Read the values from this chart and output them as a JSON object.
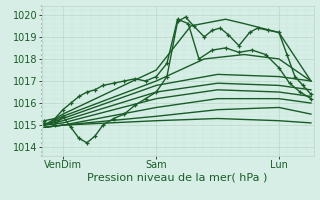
{
  "bg_color": "#d6eee6",
  "grid_major_color": "#b8d8c8",
  "grid_minor_color": "#c8e8d8",
  "line_color": "#1a5c28",
  "xlabel": "Pression niveau de la mer( hPa )",
  "xlabel_fontsize": 8,
  "tick_label_color": "#1a5c28",
  "tick_fontsize": 7,
  "ylim": [
    1013.6,
    1020.4
  ],
  "yticks": [
    1014,
    1015,
    1016,
    1017,
    1018,
    1019,
    1020
  ],
  "xtick_labels": [
    "VenDim",
    "Sam",
    "Lun"
  ],
  "xtick_positions": [
    0.07,
    0.42,
    0.88
  ],
  "series": [
    {
      "x": [
        0.0,
        0.04,
        0.07,
        0.1,
        0.13,
        0.16,
        0.19,
        0.22,
        0.26,
        0.3,
        0.34,
        0.38,
        0.42,
        0.46,
        0.5,
        0.53,
        0.56,
        0.6,
        0.63,
        0.66,
        0.69,
        0.73,
        0.77,
        0.8,
        0.84,
        0.88,
        0.91,
        0.94,
        0.97,
        1.0
      ],
      "y": [
        1015.1,
        1015.0,
        1015.4,
        1014.9,
        1014.4,
        1014.2,
        1014.5,
        1015.0,
        1015.3,
        1015.5,
        1015.9,
        1016.2,
        1016.5,
        1017.2,
        1019.7,
        1019.9,
        1019.5,
        1019.0,
        1019.3,
        1019.4,
        1019.1,
        1018.6,
        1019.2,
        1019.4,
        1019.3,
        1019.2,
        1018.2,
        1017.2,
        1016.8,
        1016.4
      ],
      "marker": true,
      "lw": 1.0
    },
    {
      "x": [
        0.0,
        0.04,
        0.07,
        0.1,
        0.13,
        0.16,
        0.19,
        0.22,
        0.26,
        0.3,
        0.34,
        0.38,
        0.42,
        0.46,
        0.5,
        0.54,
        0.58,
        0.63,
        0.68,
        0.73,
        0.78,
        0.83,
        0.88,
        0.92,
        0.96,
        1.0
      ],
      "y": [
        1015.2,
        1015.3,
        1015.7,
        1016.0,
        1016.3,
        1016.5,
        1016.6,
        1016.8,
        1016.9,
        1017.0,
        1017.1,
        1017.0,
        1017.2,
        1017.8,
        1019.8,
        1019.6,
        1018.0,
        1018.4,
        1018.5,
        1018.3,
        1018.4,
        1018.2,
        1017.6,
        1016.9,
        1016.5,
        1016.2
      ],
      "marker": true,
      "lw": 1.0
    },
    {
      "x": [
        0.0,
        0.07,
        0.42,
        0.55,
        0.68,
        0.75,
        0.88,
        1.0
      ],
      "y": [
        1015.0,
        1015.5,
        1017.5,
        1019.5,
        1019.8,
        1019.6,
        1019.2,
        1017.0
      ],
      "marker": false,
      "lw": 1.0
    },
    {
      "x": [
        0.0,
        0.07,
        0.42,
        0.6,
        0.75,
        0.88,
        1.0
      ],
      "y": [
        1015.0,
        1015.4,
        1017.0,
        1018.0,
        1018.2,
        1018.0,
        1017.0
      ],
      "marker": false,
      "lw": 1.0
    },
    {
      "x": [
        0.0,
        0.07,
        0.42,
        0.65,
        0.88,
        1.0
      ],
      "y": [
        1015.0,
        1015.3,
        1016.8,
        1017.3,
        1017.2,
        1017.0
      ],
      "marker": false,
      "lw": 1.0
    },
    {
      "x": [
        0.0,
        0.07,
        0.42,
        0.65,
        0.88,
        1.0
      ],
      "y": [
        1015.0,
        1015.2,
        1016.5,
        1016.9,
        1016.8,
        1016.6
      ],
      "marker": false,
      "lw": 1.0
    },
    {
      "x": [
        0.0,
        0.07,
        0.42,
        0.65,
        0.88,
        1.0
      ],
      "y": [
        1015.0,
        1015.1,
        1016.2,
        1016.6,
        1016.5,
        1016.3
      ],
      "marker": false,
      "lw": 1.0
    },
    {
      "x": [
        0.0,
        0.07,
        0.42,
        0.65,
        0.88,
        1.0
      ],
      "y": [
        1014.9,
        1015.0,
        1015.8,
        1016.2,
        1016.2,
        1016.0
      ],
      "marker": false,
      "lw": 1.0
    },
    {
      "x": [
        0.0,
        0.07,
        0.42,
        0.65,
        0.88,
        1.0
      ],
      "y": [
        1014.9,
        1015.0,
        1015.4,
        1015.7,
        1015.8,
        1015.5
      ],
      "marker": false,
      "lw": 1.0
    },
    {
      "x": [
        0.0,
        0.07,
        0.42,
        0.65,
        0.88,
        1.0
      ],
      "y": [
        1014.9,
        1015.0,
        1015.2,
        1015.3,
        1015.2,
        1015.1
      ],
      "marker": false,
      "lw": 1.0
    }
  ]
}
